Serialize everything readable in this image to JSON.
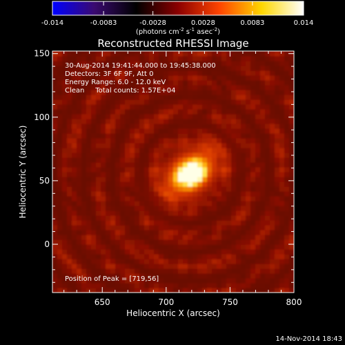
{
  "chart_data": {
    "type": "heatmap",
    "title": "Reconstructed RHESSI Image",
    "xlabel": "Heliocentric X (arcsec)",
    "ylabel": "Heliocentric Y (arcsec)",
    "xlim": [
      611,
      800
    ],
    "ylim": [
      -38,
      152
    ],
    "x_ticks": [
      650,
      700,
      750,
      800
    ],
    "y_ticks": [
      0,
      50,
      100,
      150
    ],
    "peak": [
      719,
      56
    ],
    "colorbar": {
      "min": -0.014,
      "max": 0.014,
      "ticks": [
        "-0.014",
        "-0.0083",
        "-0.0028",
        "0.0028",
        "0.0083",
        "0.014"
      ],
      "label": "(photons cm",
      "label_sup1": "-2",
      "label_mid": " s",
      "label_sup2": "-1",
      "label_tail": " asec",
      "label_sup3": "-2",
      "label_close": ")",
      "colormap": [
        "#0000ff",
        "#3a0a70",
        "#000000",
        "#8b0000",
        "#ff4500",
        "#ffd700",
        "#ffffff"
      ]
    },
    "annotations": [
      "30-Aug-2014 19:41:44.000 to 19:45:38.000",
      "Detectors: 3F 6F 9F, Att 0",
      "Energy Range: 6.0 - 12.0 keV",
      "Clean     Total counts: 1.57E+04"
    ],
    "peak_text": "Position of Peak = [719,56]"
  },
  "footer": {
    "timestamp": "14-Nov-2014 18:43"
  }
}
